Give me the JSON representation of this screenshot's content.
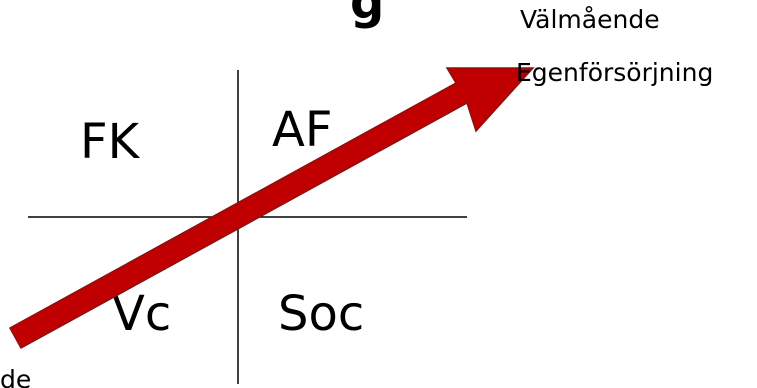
{
  "title_fragment": "g",
  "quadrants": {
    "top_left": "FK",
    "top_right": "AF",
    "bottom_left": "Vc",
    "bottom_right": "Soc"
  },
  "arrow_target": {
    "line1": "Välmående",
    "line2": "Egenförsörjning"
  },
  "arrow_origin_fragment": "de",
  "colors": {
    "arrow_fill": "#c00000",
    "arrow_stroke": "#8b1010",
    "axis_line": "#000000"
  }
}
